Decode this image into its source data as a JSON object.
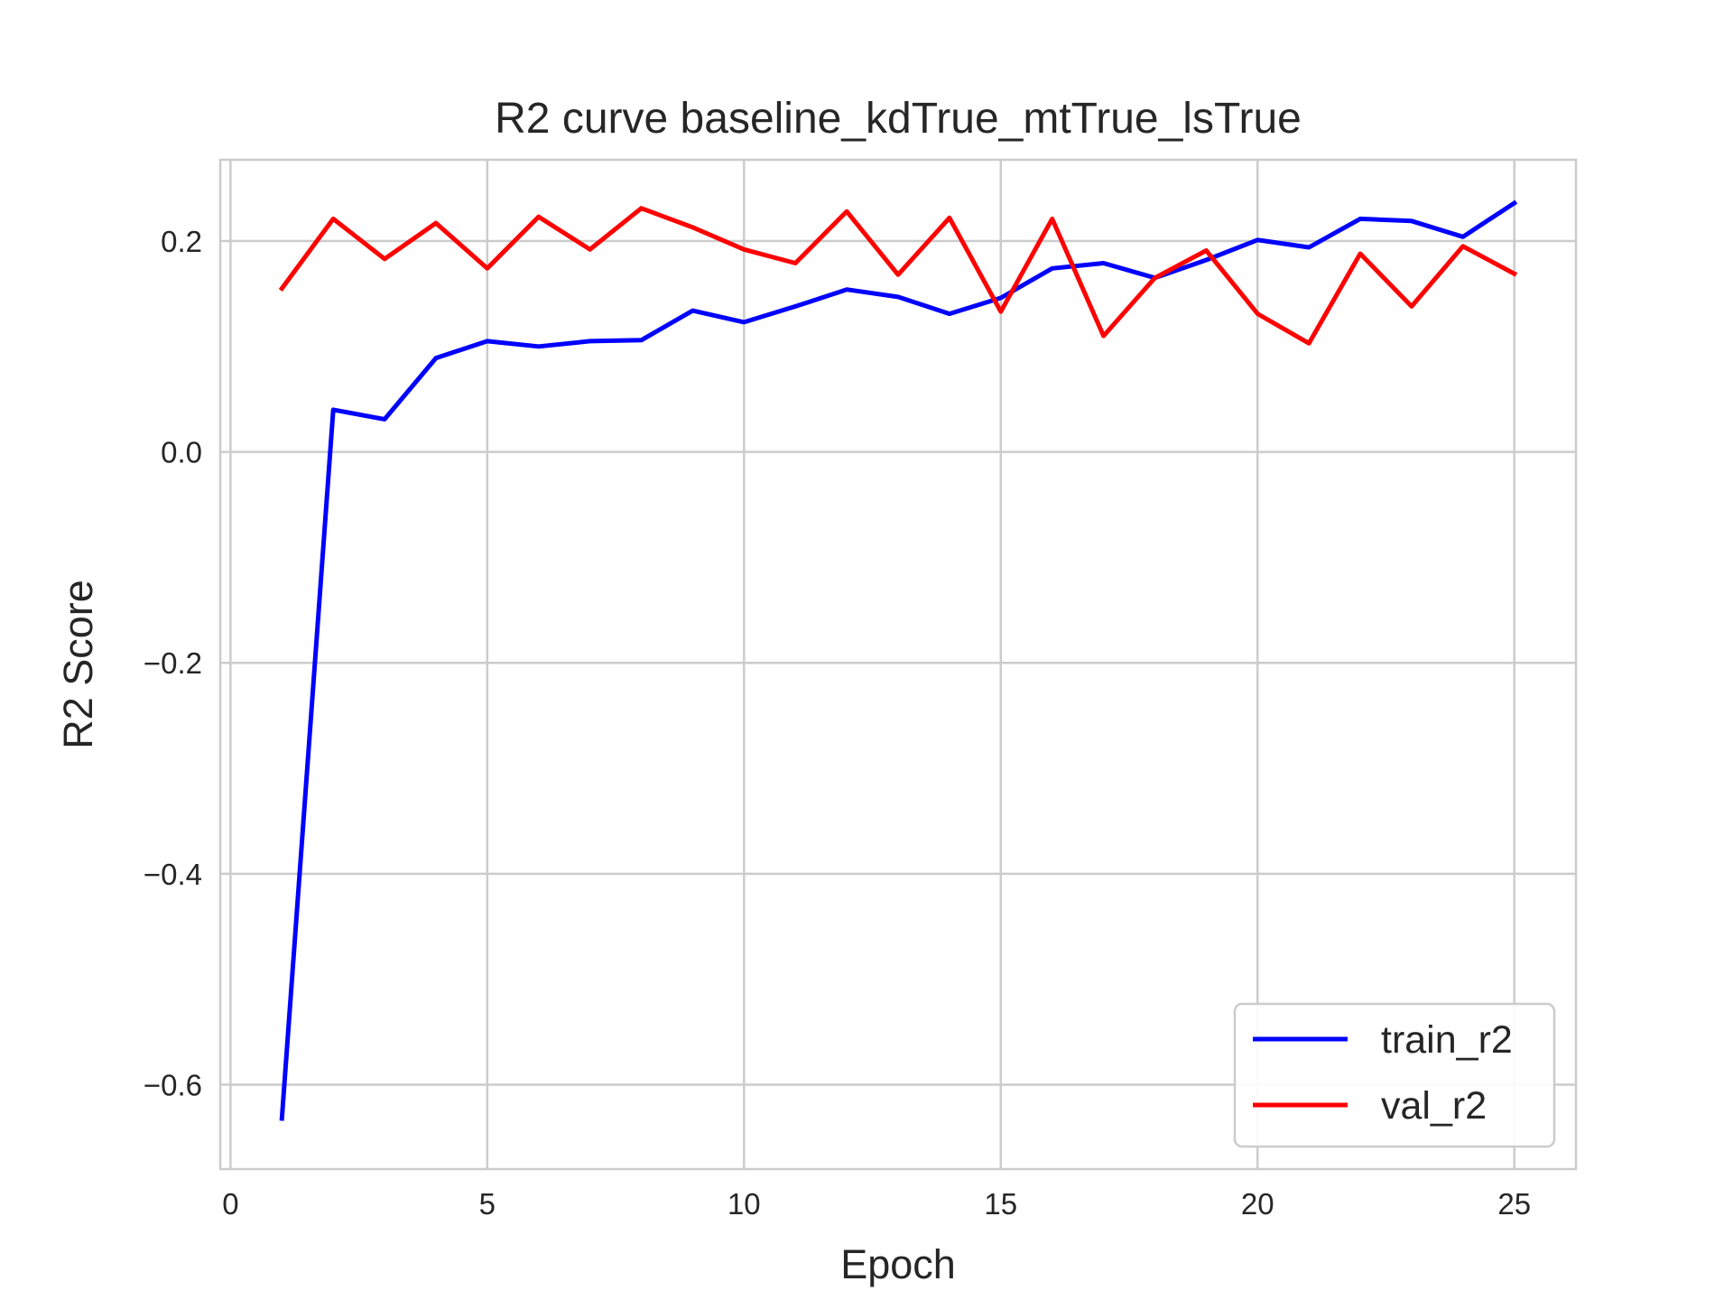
{
  "chart_data": {
    "type": "line",
    "title": "R2 curve baseline_kdTrue_mtTrue_lsTrue",
    "xlabel": "Epoch",
    "ylabel": "R2 Score",
    "xlim": [
      -0.2,
      26.2
    ],
    "ylim": [
      -0.68,
      0.277
    ],
    "xticks": [
      0,
      5,
      10,
      15,
      20,
      25
    ],
    "xtick_labels": [
      "0",
      "5",
      "10",
      "15",
      "20",
      "25"
    ],
    "yticks": [
      -0.6,
      -0.4,
      -0.2,
      0.0,
      0.2
    ],
    "ytick_labels": [
      "−0.6",
      "−0.4",
      "−0.2",
      "0.0",
      "0.2"
    ],
    "grid": true,
    "legend_position": "lower-right",
    "x": [
      1,
      2,
      3,
      4,
      5,
      6,
      7,
      8,
      9,
      10,
      11,
      12,
      13,
      14,
      15,
      16,
      17,
      18,
      19,
      20,
      21,
      22,
      23,
      24,
      25
    ],
    "series": [
      {
        "name": "train_r2",
        "color": "#0000ff",
        "values": [
          -0.632,
          0.04,
          0.031,
          0.089,
          0.105,
          0.1,
          0.105,
          0.106,
          0.134,
          0.123,
          0.138,
          0.154,
          0.147,
          0.131,
          0.146,
          0.174,
          0.179,
          0.165,
          0.182,
          0.201,
          0.194,
          0.221,
          0.219,
          0.204,
          0.236
        ]
      },
      {
        "name": "val_r2",
        "color": "#ff0000",
        "values": [
          0.155,
          0.221,
          0.183,
          0.217,
          0.174,
          0.223,
          0.192,
          0.231,
          0.213,
          0.192,
          0.179,
          0.228,
          0.168,
          0.222,
          0.133,
          0.221,
          0.11,
          0.165,
          0.191,
          0.131,
          0.103,
          0.188,
          0.138,
          0.195,
          0.169
        ]
      }
    ]
  }
}
